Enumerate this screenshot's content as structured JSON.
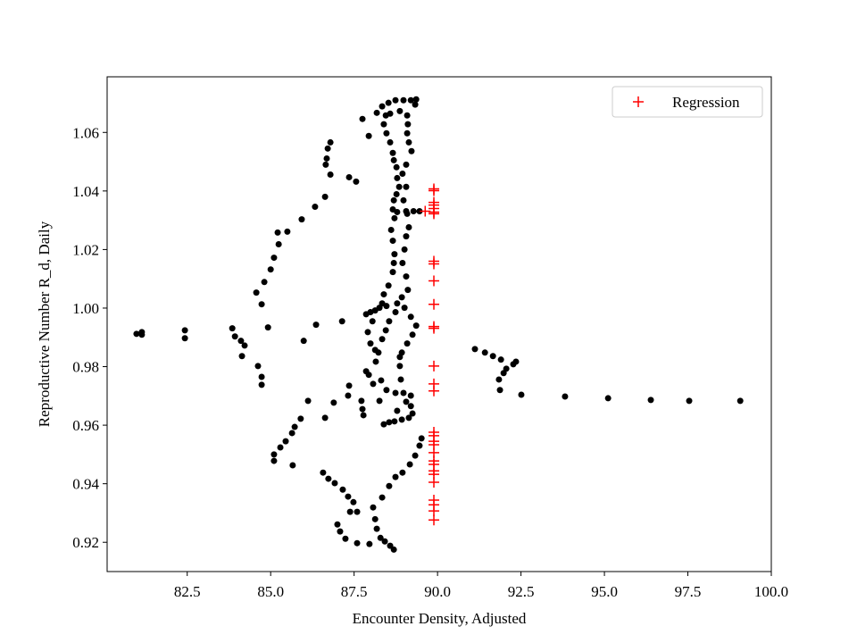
{
  "chart_data": {
    "type": "scatter",
    "xlabel": "Encounter Density, Adjusted",
    "ylabel": "Reproductive Number R_d, Daily",
    "xlim": [
      80.1,
      100.0
    ],
    "ylim": [
      0.91,
      1.079
    ],
    "xticks": [
      82.5,
      {
        "value": 85,
        "label": "85.0"
      },
      87.5,
      {
        "value": 90,
        "label": "90.0"
      },
      92.5,
      {
        "value": 95,
        "label": "95.0"
      },
      97.5,
      {
        "value": 100,
        "label": "100.0"
      }
    ],
    "yticks": [
      0.92,
      0.94,
      0.96,
      0.98,
      {
        "value": 1,
        "label": "1.00"
      },
      1.02,
      1.04,
      1.06
    ],
    "legend": "upper right",
    "series": [
      {
        "color": "#000000",
        "marker": "circle",
        "x": [
          80.98,
          81.14,
          81.14,
          82.43,
          82.43,
          83.85,
          83.93,
          84.11,
          84.22,
          84.14,
          84.62,
          84.73,
          84.73,
          84.92,
          84.57,
          84.73,
          84.81,
          85.0,
          85.1,
          85.24,
          85.21,
          85.5,
          85.93,
          86.33,
          86.63,
          86.79,
          86.65,
          86.68,
          86.79,
          86.71,
          87.75,
          87.94,
          88.18,
          88.34,
          88.53,
          88.74,
          88.98,
          89.2,
          89.36,
          89.33,
          87.35,
          87.56,
          87.86,
          87.99,
          88.13,
          88.34,
          88.39,
          88.53,
          88.66,
          88.69,
          88.71,
          88.66,
          88.61,
          88.71,
          88.66,
          88.69,
          88.77,
          88.85,
          88.79,
          88.77,
          88.69,
          88.66,
          88.58,
          88.47,
          88.39,
          88.45,
          88.58,
          88.87,
          89.09,
          89.11,
          89.09,
          89.14,
          89.22,
          89.06,
          88.95,
          89.06,
          88.98,
          89.09,
          89.14,
          89.06,
          89.01,
          88.95,
          89.06,
          89.11,
          88.93,
          88.79,
          88.47,
          88.26,
          88.05,
          87.91,
          87.99,
          88.13,
          88.34,
          88.45,
          88.55,
          88.74,
          89.01,
          89.2,
          89.36,
          89.25,
          89.09,
          88.93,
          88.87,
          88.9,
          88.98,
          89.06,
          89.2,
          89.25,
          89.14,
          88.93,
          88.71,
          88.79,
          89.06,
          89.28,
          89.46,
          88.23,
          88.15,
          88.87,
          88.47,
          88.74,
          89.2,
          85.1,
          85.1,
          85.29,
          85.45,
          85.64,
          85.72,
          85.9,
          86.12,
          85.66,
          85.99,
          86.36,
          87.14,
          86.57,
          86.73,
          86.92,
          87.16,
          87.32,
          87.48,
          87.59,
          87.38,
          87.0,
          87.08,
          87.24,
          87.59,
          87.96,
          88.07,
          88.13,
          88.18,
          88.29,
          88.42,
          88.58,
          88.69,
          88.34,
          88.55,
          88.74,
          88.95,
          89.17,
          89.33,
          89.46,
          89.52,
          86.63,
          86.89,
          87.32,
          87.72,
          87.75,
          87.78,
          87.35,
          87.86,
          87.94,
          88.07,
          88.31,
          88.26,
          88.39,
          88.55,
          88.79,
          91.12,
          91.42,
          91.66,
          91.9,
          92.27,
          92.35,
          92.06,
          91.98,
          91.84,
          91.87,
          92.51,
          93.82,
          95.11,
          96.39,
          97.54,
          99.07
        ],
        "y": [
          0.9912,
          0.9909,
          0.9918,
          0.9924,
          0.9897,
          0.9931,
          0.9903,
          0.9888,
          0.9872,
          0.9836,
          0.9802,
          0.9738,
          0.9765,
          0.9934,
          1.0053,
          1.0013,
          1.0089,
          1.0132,
          1.0172,
          1.0218,
          1.0258,
          1.0261,
          1.0303,
          1.0346,
          1.038,
          1.0456,
          1.049,
          1.0511,
          1.0566,
          1.0545,
          1.0646,
          1.0588,
          1.0667,
          1.0689,
          1.0701,
          1.071,
          1.071,
          1.071,
          1.0713,
          1.0695,
          1.0447,
          1.0432,
          0.9979,
          0.9986,
          0.9992,
          1.0016,
          1.0047,
          1.0077,
          1.0123,
          1.0154,
          1.0184,
          1.023,
          1.0267,
          1.0307,
          1.0337,
          1.0368,
          1.0389,
          1.0414,
          1.0444,
          1.0481,
          1.0505,
          1.053,
          1.0566,
          1.0597,
          1.0628,
          1.0658,
          1.0664,
          1.0673,
          1.0658,
          1.0628,
          1.0597,
          1.0566,
          1.0536,
          1.049,
          1.0459,
          1.0414,
          1.0368,
          1.0322,
          1.0276,
          1.0245,
          1.02,
          1.0154,
          1.0108,
          1.0062,
          1.0037,
          1.0016,
          1.0007,
          1.0001,
          0.9955,
          0.9918,
          0.9879,
          0.9857,
          0.9894,
          0.9924,
          0.9955,
          0.9986,
          1.0001,
          0.997,
          0.994,
          0.9909,
          0.9879,
          0.9848,
          0.9802,
          0.9756,
          0.971,
          0.968,
          0.9665,
          0.964,
          0.9625,
          0.9619,
          0.9613,
          1.0328,
          1.0331,
          1.0331,
          1.0331,
          0.9848,
          0.9817,
          0.9833,
          0.972,
          0.971,
          0.9701,
          0.95,
          0.9478,
          0.9524,
          0.9545,
          0.9573,
          0.9594,
          0.9622,
          0.9683,
          0.9463,
          0.9888,
          0.9943,
          0.9955,
          0.9438,
          0.9417,
          0.9402,
          0.938,
          0.9356,
          0.9337,
          0.9304,
          0.9304,
          0.9261,
          0.9237,
          0.9212,
          0.9197,
          0.9194,
          0.9319,
          0.9279,
          0.9246,
          0.9215,
          0.9203,
          0.9188,
          0.9175,
          0.9353,
          0.9392,
          0.9423,
          0.9438,
          0.9466,
          0.9496,
          0.953,
          0.9555,
          0.9625,
          0.9677,
          0.9701,
          0.9683,
          0.9655,
          0.9634,
          0.9735,
          0.9784,
          0.9772,
          0.9741,
          0.9753,
          0.9683,
          0.9603,
          0.961,
          0.9649,
          0.986,
          0.9848,
          0.9836,
          0.9824,
          0.9808,
          0.9817,
          0.9793,
          0.9778,
          0.9756,
          0.972,
          0.9704,
          0.9698,
          0.9692,
          0.9686,
          0.9683,
          0.9683
        ]
      },
      {
        "name": "Regression",
        "color": "#ff0000",
        "marker": "plus",
        "x": [
          89.89,
          89.89,
          89.89,
          89.89,
          89.89,
          89.89,
          89.89,
          89.63,
          89.89,
          89.89,
          89.89,
          89.89,
          89.89,
          89.89,
          89.89,
          89.89,
          89.89,
          89.89,
          89.89,
          89.89,
          89.89,
          89.89,
          89.89,
          89.89,
          89.89,
          89.89,
          89.89,
          89.89,
          89.89,
          89.89,
          89.89
        ],
        "y": [
          1.0407,
          1.0401,
          1.0361,
          1.0352,
          1.034,
          1.0328,
          1.0322,
          1.0331,
          1.016,
          1.0151,
          1.0093,
          1.0013,
          0.9937,
          0.9931,
          0.9802,
          0.9741,
          0.9717,
          0.9576,
          0.9564,
          0.9545,
          0.9533,
          0.9506,
          0.9478,
          0.9466,
          0.9444,
          0.9432,
          0.9405,
          0.9344,
          0.9328,
          0.9307,
          0.9276
        ]
      }
    ]
  }
}
